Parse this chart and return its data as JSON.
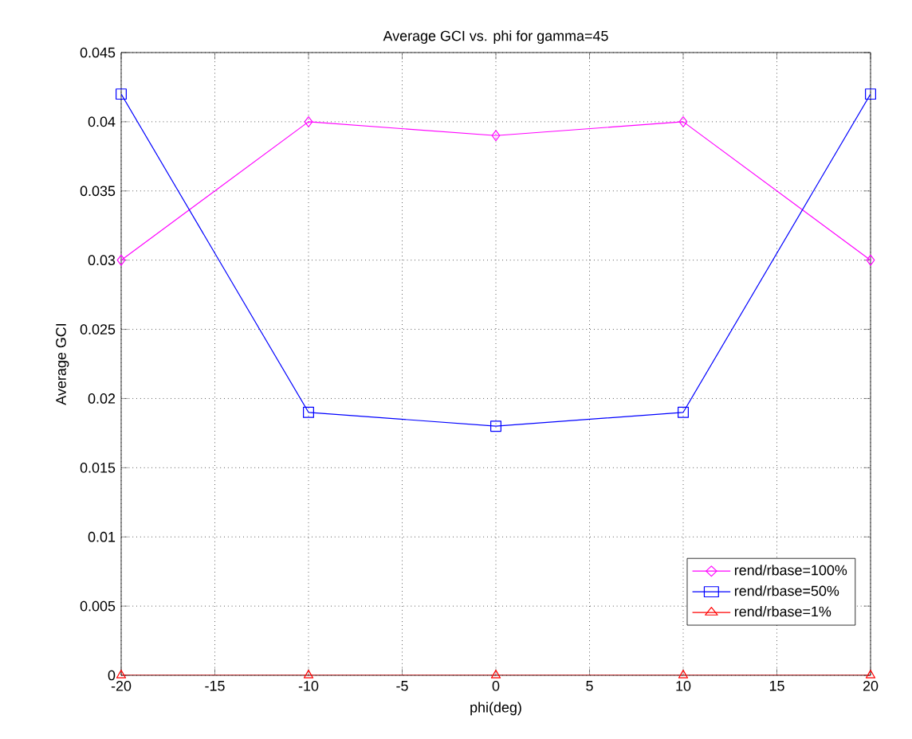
{
  "chart_data": {
    "type": "line",
    "title": "Average GCI vs. phi for gamma=45",
    "xlabel": "phi(deg)",
    "ylabel": "Average GCI",
    "x": [
      -20,
      -10,
      0,
      10,
      20
    ],
    "series": [
      {
        "name": "rend/rbase=100%",
        "color": "#ff00ff",
        "marker": "diamond",
        "values": [
          0.03,
          0.04,
          0.039,
          0.04,
          0.03
        ]
      },
      {
        "name": "rend/rbase=50%",
        "color": "#0000ff",
        "marker": "square",
        "values": [
          0.042,
          0.019,
          0.018,
          0.019,
          0.042
        ]
      },
      {
        "name": "rend/rbase=1%",
        "color": "#ff0000",
        "marker": "triangle",
        "values": [
          0,
          0,
          0,
          0,
          0
        ]
      }
    ],
    "xlim": [
      -20,
      20
    ],
    "xticks": [
      -20,
      -15,
      -10,
      -5,
      0,
      5,
      10,
      15,
      20
    ],
    "ylim": [
      0,
      0.045
    ],
    "yticks": [
      0,
      0.005,
      0.01,
      0.015,
      0.02,
      0.025,
      0.03,
      0.035,
      0.04,
      0.045
    ],
    "grid": true,
    "legend": "bottom right",
    "line_style": "solid"
  }
}
